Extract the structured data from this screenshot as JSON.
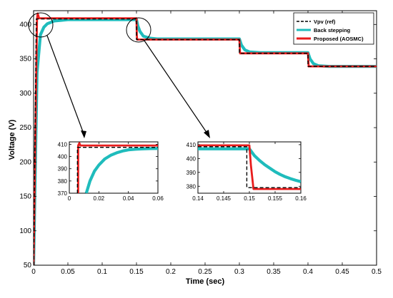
{
  "chart_data": {
    "type": "line",
    "xlabel": "Time (sec)",
    "ylabel": "Voltage (V)",
    "xlim": [
      0,
      0.5
    ],
    "ylim": [
      50,
      420
    ],
    "xticks": [
      "0",
      "0.05",
      "0.1",
      "0.15",
      "0.2",
      "0.25",
      "0.3",
      "0.35",
      "0.4",
      "0.45",
      "0.5"
    ],
    "yticks": [
      "50",
      "100",
      "150",
      "200",
      "250",
      "300",
      "350",
      "400"
    ],
    "grid": false,
    "legend_position": "top-right",
    "series": [
      {
        "name": "Vpv (ref)",
        "color": "#000000",
        "style": "dashed",
        "x": [
          0,
          0.004,
          0.15,
          0.15,
          0.3,
          0.3,
          0.4,
          0.4,
          0.5
        ],
        "y": [
          50,
          408,
          408,
          378,
          378,
          358,
          358,
          339,
          339
        ]
      },
      {
        "name": "Back stepping",
        "color": "#1fbcbc",
        "style": "solid",
        "x": [
          0,
          0.005,
          0.01,
          0.015,
          0.02,
          0.03,
          0.04,
          0.05,
          0.06,
          0.15,
          0.152,
          0.155,
          0.16,
          0.17,
          0.18,
          0.3,
          0.303,
          0.308,
          0.315,
          0.33,
          0.4,
          0.403,
          0.408,
          0.415,
          0.43,
          0.5
        ],
        "y": [
          50,
          330,
          385,
          396,
          401,
          405,
          406,
          407,
          407,
          407,
          398,
          390,
          383,
          380,
          379,
          379,
          370,
          363,
          360,
          359,
          359,
          350,
          343,
          340,
          339,
          339
        ]
      },
      {
        "name": "Proposed (AOSMC)",
        "color": "#e81c1c",
        "style": "solid",
        "x": [
          0,
          0.005,
          0.006,
          0.008,
          0.15,
          0.1505,
          0.151,
          0.3,
          0.301,
          0.4,
          0.401,
          0.5
        ],
        "y": [
          50,
          408,
          416,
          409,
          409,
          384,
          378,
          378,
          358,
          358,
          339,
          339
        ]
      }
    ],
    "insets": [
      {
        "xlim": [
          0,
          0.06
        ],
        "ylim": [
          370,
          412
        ],
        "xticks": [
          "0",
          "0.02",
          "0.04",
          "0.06"
        ],
        "yticks": [
          "370",
          "380",
          "390",
          "400",
          "410"
        ],
        "series": [
          {
            "name": "Vpv (ref)",
            "x": [
              0.0055,
              0.0055,
              0.06
            ],
            "y": [
              370,
              407.5,
              407.5
            ]
          },
          {
            "name": "Back stepping",
            "x": [
              0.0115,
              0.014,
              0.017,
              0.02,
              0.024,
              0.028,
              0.032,
              0.036,
              0.04,
              0.045,
              0.05,
              0.055,
              0.06
            ],
            "y": [
              370,
              380,
              388,
              393,
              398,
              401,
              403,
              404.5,
              405.5,
              406,
              406.3,
              406.5,
              406.6
            ]
          },
          {
            "name": "Proposed (AOSMC)",
            "x": [
              0.006,
              0.006,
              0.0068,
              0.0075,
              0.06
            ],
            "y": [
              370,
              409,
              411,
              409,
              409
            ]
          }
        ]
      },
      {
        "xlim": [
          0.14,
          0.16
        ],
        "ylim": [
          375,
          412
        ],
        "xticks": [
          "0.14",
          "0.145",
          "0.15",
          "0.155",
          "0.16"
        ],
        "yticks": [
          "380",
          "390",
          "400",
          "410"
        ],
        "series": [
          {
            "name": "Vpv (ref)",
            "x": [
              0.14,
              0.1495,
              0.1495,
              0.16
            ],
            "y": [
              408.5,
              408.5,
              379,
              379
            ]
          },
          {
            "name": "Back stepping",
            "x": [
              0.14,
              0.15,
              0.151,
              0.152,
              0.153,
              0.154,
              0.155,
              0.156,
              0.157,
              0.158,
              0.159,
              0.16
            ],
            "y": [
              407,
              407,
              402,
              398.5,
              395.5,
              393,
              390.5,
              388.5,
              386.8,
              385.5,
              384.3,
              383.3
            ]
          },
          {
            "name": "Proposed (AOSMC)",
            "x": [
              0.14,
              0.15,
              0.1503,
              0.1508,
              0.16
            ],
            "y": [
              409.5,
              409.5,
              395,
              378,
              378
            ]
          }
        ]
      }
    ]
  }
}
